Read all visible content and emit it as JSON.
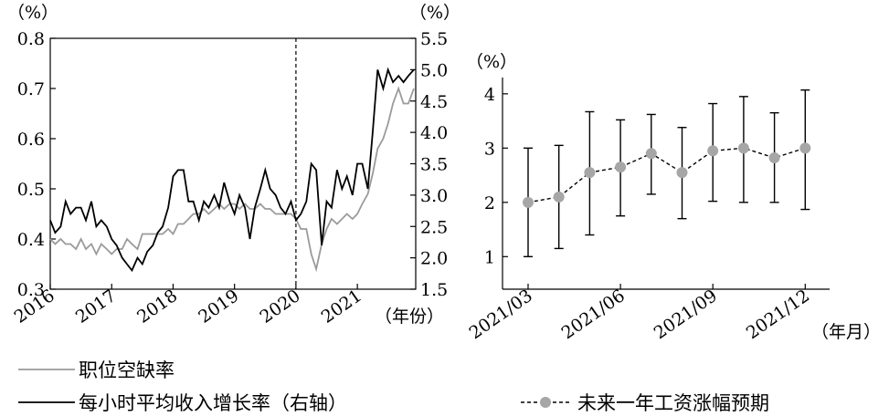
{
  "legend": {
    "vacancy": "职位空缺率",
    "wage": "每小时平均收入增长率（右轴）",
    "expect": "未来一年工资涨幅预期"
  },
  "colors": {
    "vacancy": "#9a9a9a",
    "wage": "#000000",
    "expect_marker": "#a6a6a6"
  },
  "chart_data": [
    {
      "type": "line",
      "left_unit": "（%）",
      "right_unit": "（%）",
      "xlabel": "（年份）",
      "x_ticks": [
        "2016",
        "2017",
        "2018",
        "2019",
        "2020",
        "2021"
      ],
      "x_range": [
        2016.0,
        2021.95
      ],
      "ylim_left": [
        0.3,
        0.8
      ],
      "ylim_right": [
        1.5,
        5.5
      ],
      "yticks_left": [
        "0.3",
        "0.4",
        "0.5",
        "0.6",
        "0.7",
        "0.8"
      ],
      "yticks_right": [
        "1.5",
        "2.0",
        "2.5",
        "3.0",
        "3.5",
        "4.0",
        "4.5",
        "5.0",
        "5.5"
      ],
      "vline_x": 2020.0,
      "series": [
        {
          "name": "职位空缺率",
          "axis": "left",
          "x": [
            2016.0,
            2016.08,
            2016.17,
            2016.25,
            2016.33,
            2016.42,
            2016.5,
            2016.58,
            2016.67,
            2016.75,
            2016.83,
            2016.92,
            2017.0,
            2017.08,
            2017.17,
            2017.25,
            2017.33,
            2017.42,
            2017.5,
            2017.58,
            2017.67,
            2017.75,
            2017.83,
            2017.92,
            2018.0,
            2018.08,
            2018.17,
            2018.25,
            2018.33,
            2018.42,
            2018.5,
            2018.58,
            2018.67,
            2018.75,
            2018.83,
            2018.92,
            2019.0,
            2019.08,
            2019.17,
            2019.25,
            2019.33,
            2019.42,
            2019.5,
            2019.58,
            2019.67,
            2019.75,
            2019.83,
            2019.92,
            2020.0,
            2020.08,
            2020.17,
            2020.25,
            2020.33,
            2020.42,
            2020.5,
            2020.58,
            2020.67,
            2020.75,
            2020.83,
            2020.92,
            2021.0,
            2021.08,
            2021.17,
            2021.25,
            2021.33,
            2021.42,
            2021.5,
            2021.58,
            2021.67,
            2021.75,
            2021.83,
            2021.92
          ],
          "values": [
            0.4,
            0.39,
            0.4,
            0.39,
            0.39,
            0.38,
            0.4,
            0.38,
            0.39,
            0.37,
            0.39,
            0.38,
            0.37,
            0.38,
            0.38,
            0.4,
            0.39,
            0.38,
            0.41,
            0.41,
            0.41,
            0.41,
            0.41,
            0.42,
            0.41,
            0.43,
            0.43,
            0.44,
            0.45,
            0.45,
            0.46,
            0.45,
            0.46,
            0.47,
            0.46,
            0.47,
            0.47,
            0.46,
            0.47,
            0.46,
            0.46,
            0.47,
            0.46,
            0.46,
            0.45,
            0.45,
            0.45,
            0.45,
            0.44,
            0.42,
            0.42,
            0.37,
            0.34,
            0.39,
            0.42,
            0.44,
            0.43,
            0.44,
            0.45,
            0.44,
            0.45,
            0.47,
            0.49,
            0.53,
            0.58,
            0.6,
            0.63,
            0.67,
            0.7,
            0.67,
            0.67,
            0.7
          ]
        },
        {
          "name": "每小时平均收入增长率（右轴）",
          "axis": "right",
          "x": [
            2016.0,
            2016.08,
            2016.17,
            2016.25,
            2016.33,
            2016.42,
            2016.5,
            2016.58,
            2016.67,
            2016.75,
            2016.83,
            2016.92,
            2017.0,
            2017.08,
            2017.17,
            2017.25,
            2017.33,
            2017.42,
            2017.5,
            2017.58,
            2017.67,
            2017.75,
            2017.83,
            2017.92,
            2018.0,
            2018.08,
            2018.17,
            2018.25,
            2018.33,
            2018.42,
            2018.5,
            2018.58,
            2018.67,
            2018.75,
            2018.83,
            2018.92,
            2019.0,
            2019.08,
            2019.17,
            2019.25,
            2019.33,
            2019.42,
            2019.5,
            2019.58,
            2019.67,
            2019.75,
            2019.83,
            2019.92,
            2020.0,
            2020.08,
            2020.17,
            2020.25,
            2020.33,
            2020.42,
            2020.5,
            2020.58,
            2020.67,
            2020.75,
            2020.83,
            2020.92,
            2021.0,
            2021.08,
            2021.17,
            2021.25,
            2021.33,
            2021.42,
            2021.5,
            2021.58,
            2021.67,
            2021.75,
            2021.83,
            2021.92
          ],
          "values": [
            2.6,
            2.4,
            2.5,
            2.9,
            2.7,
            2.8,
            2.8,
            2.6,
            2.9,
            2.5,
            2.6,
            2.5,
            2.3,
            2.2,
            2.0,
            1.9,
            1.8,
            2.0,
            1.9,
            2.1,
            2.2,
            2.4,
            2.5,
            2.8,
            3.3,
            3.4,
            3.4,
            2.9,
            2.9,
            2.6,
            2.9,
            2.8,
            3.0,
            2.8,
            3.2,
            2.9,
            2.7,
            3.0,
            2.8,
            2.3,
            2.8,
            3.1,
            3.4,
            3.1,
            3.0,
            2.8,
            2.7,
            2.9,
            2.6,
            2.7,
            2.9,
            3.5,
            3.4,
            2.2,
            2.9,
            2.8,
            3.4,
            3.1,
            3.3,
            3.0,
            3.5,
            3.5,
            3.1,
            4.0,
            5.0,
            4.7,
            5.0,
            4.8,
            4.9,
            4.8,
            4.9,
            5.0
          ]
        }
      ]
    },
    {
      "type": "line",
      "y_unit": "（%）",
      "xlabel": "（年月）",
      "categories": [
        "2021/03",
        "2021/04",
        "2021/05",
        "2021/06",
        "2021/07",
        "2021/08",
        "2021/09",
        "2021/10",
        "2021/11",
        "2021/12"
      ],
      "x_tick_labels": [
        "2021/03",
        "2021/06",
        "2021/09",
        "2021/12"
      ],
      "ylim": [
        0.4,
        4.3
      ],
      "yticks": [
        "1",
        "2",
        "3",
        "4"
      ],
      "series": [
        {
          "name": "未来一年工资涨幅预期",
          "values": [
            2.0,
            2.1,
            2.55,
            2.65,
            2.9,
            2.55,
            2.95,
            3.0,
            2.82,
            3.0
          ],
          "error_low": [
            1.0,
            1.15,
            1.4,
            1.75,
            2.15,
            1.7,
            2.02,
            2.0,
            2.0,
            1.87
          ],
          "error_high": [
            3.0,
            3.05,
            3.67,
            3.52,
            3.62,
            3.38,
            3.82,
            3.95,
            3.65,
            4.07
          ]
        }
      ]
    }
  ]
}
